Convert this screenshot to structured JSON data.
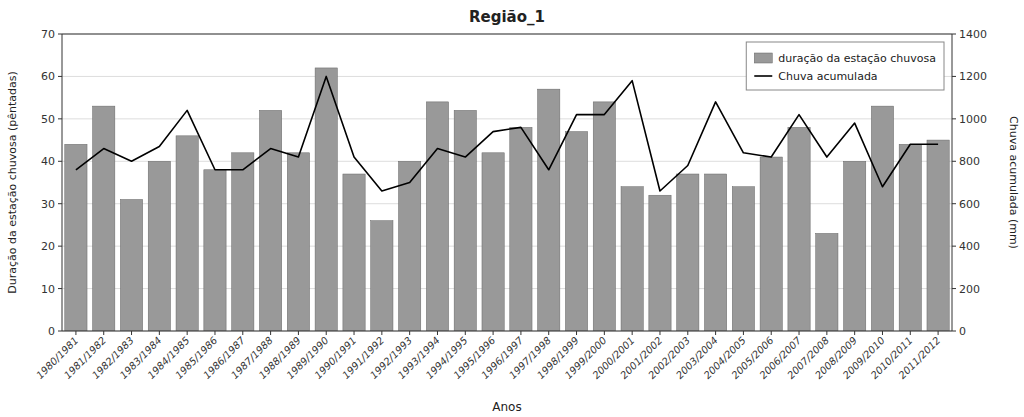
{
  "chart_data": {
    "type": "bar",
    "title": "Região_1",
    "xlabel": "Anos",
    "ylabel": "Duração da estação chuvosa (pêntadas)",
    "y2label": "Chuva acumulada (mm)",
    "categories": [
      "1980/1981",
      "1981/1982",
      "1982/1983",
      "1983/1984",
      "1984/1985",
      "1985/1986",
      "1986/1987",
      "1987/1988",
      "1988/1989",
      "1989/1990",
      "1990/1991",
      "1991/1992",
      "1992/1993",
      "1993/1994",
      "1994/1995",
      "1995/1996",
      "1996/1997",
      "1997/1998",
      "1998/1999",
      "1999/2000",
      "2000/2001",
      "2001/2002",
      "2002/2003",
      "2003/2004",
      "2004/2005",
      "2005/2006",
      "2006/2007",
      "2007/2008",
      "2008/2009",
      "2009/2010",
      "2010/2011",
      "2011/2012"
    ],
    "series": [
      {
        "name": "duração da estação chuvosa",
        "type": "bar",
        "color": "#999999",
        "values": [
          44,
          53,
          31,
          40,
          46,
          38,
          42,
          52,
          42,
          62,
          37,
          26,
          40,
          54,
          52,
          42,
          48,
          57,
          47,
          54,
          34,
          32,
          37,
          37,
          34,
          41,
          48,
          23,
          40,
          53,
          44,
          45
        ]
      },
      {
        "name": "Chuva acumulada",
        "type": "line",
        "color": "#000000",
        "axis": "y2",
        "values": [
          760,
          860,
          800,
          870,
          1040,
          760,
          760,
          860,
          820,
          1200,
          820,
          660,
          700,
          860,
          820,
          940,
          960,
          760,
          1020,
          1020,
          1180,
          660,
          780,
          1080,
          840,
          820,
          1020,
          820,
          980,
          680,
          880,
          880
        ]
      }
    ],
    "ylim": [
      0,
      70
    ],
    "yticks": [
      0,
      10,
      20,
      30,
      40,
      50,
      60,
      70
    ],
    "y2lim": [
      0,
      1400
    ],
    "y2ticks": [
      0,
      200,
      400,
      600,
      800,
      1000,
      1200,
      1400
    ],
    "grid": true,
    "legend": "upper right"
  }
}
